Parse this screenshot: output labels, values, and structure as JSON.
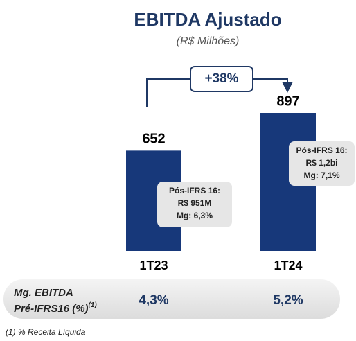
{
  "chart_data": {
    "type": "bar",
    "title": "EBITDA Ajustado",
    "subtitle": "(R$ Milhões)",
    "categories": [
      "1T23",
      "1T24"
    ],
    "values": [
      652,
      897
    ],
    "color": "#17387a",
    "growth_label": "+38%",
    "callouts": [
      {
        "lines": [
          "Pós-IFRS 16:",
          "R$ 951M",
          "Mg: 6,3%"
        ]
      },
      {
        "lines": [
          "Pós-IFRS 16:",
          "R$ 1,2bi",
          "Mg: 7,1%"
        ]
      }
    ],
    "margin_row": {
      "label_lines": [
        "Mg. EBITDA",
        "Pré-IFRS16 (%)"
      ],
      "superscript": "(1)",
      "values": [
        "4,3%",
        "5,2%"
      ]
    },
    "footnote": "(1) % Receita Líquida"
  }
}
